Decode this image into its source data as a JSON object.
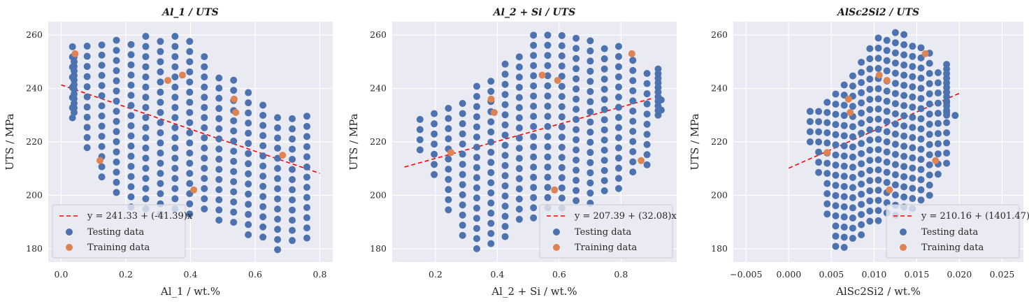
{
  "colors": {
    "background": "#eaeaf2",
    "grid": "#ffffff",
    "testing": "#4c72b0",
    "training": "#dd8452",
    "fit": "#ff0000"
  },
  "chart_data": [
    {
      "type": "scatter",
      "title": "Al_1 / UTS",
      "xlabel": "Al_1 / wt.%",
      "ylabel": "UTS / MPa",
      "xlim": [
        -0.04,
        0.84
      ],
      "ylim": [
        175,
        265
      ],
      "xticks": [
        0.0,
        0.2,
        0.4,
        0.6,
        0.8
      ],
      "xtick_labels": [
        "0.0",
        "0.2",
        "0.4",
        "0.6",
        "0.8"
      ],
      "yticks": [
        180,
        200,
        220,
        240,
        260
      ],
      "legend_position": "lower-left",
      "fit": {
        "label": "y = 241.33 + (-41.39)x",
        "intercept": 241.33,
        "slope": -41.39,
        "x_range": [
          0.0,
          0.8
        ]
      },
      "series": [
        {
          "name": "Testing data",
          "role": "testing",
          "cloud": {
            "kind": "band",
            "x0": 0.035,
            "x1": 0.76,
            "cols": 17,
            "top": [
              [
                0.035,
                256
              ],
              [
                0.2,
                260
              ],
              [
                0.38,
                261
              ],
              [
                0.47,
                249
              ],
              [
                0.6,
                238
              ],
              [
                0.68,
                229
              ],
              [
                0.76,
                232
              ]
            ],
            "bot": [
              [
                0.035,
                229
              ],
              [
                0.08,
                216
              ],
              [
                0.16,
                200
              ],
              [
                0.25,
                193
              ],
              [
                0.35,
                193
              ],
              [
                0.45,
                193
              ],
              [
                0.55,
                187
              ],
              [
                0.68,
                179
              ],
              [
                0.76,
                184
              ]
            ],
            "step": 3.8,
            "edge_x": 0.04,
            "edge_y": [
              231,
              253
            ]
          }
        },
        {
          "name": "Training data",
          "role": "training",
          "points": [
            [
              0.043,
              253
            ],
            [
              0.12,
              213
            ],
            [
              0.33,
              243
            ],
            [
              0.375,
              245
            ],
            [
              0.41,
              202
            ],
            [
              0.535,
              236
            ],
            [
              0.54,
              231
            ],
            [
              0.685,
              215
            ]
          ]
        }
      ]
    },
    {
      "type": "scatter",
      "title": "Al_2 + Si / UTS",
      "xlabel": "Al_2 + Si / wt.%",
      "ylabel": "UTS / MPa",
      "xlim": [
        0.06,
        0.98
      ],
      "ylim": [
        175,
        265
      ],
      "xticks": [
        0.2,
        0.4,
        0.6,
        0.8
      ],
      "xtick_labels": [
        "0.2",
        "0.4",
        "0.6",
        "0.8"
      ],
      "yticks": [
        180,
        200,
        220,
        240,
        260
      ],
      "legend_position": "lower-right",
      "fit": {
        "label": "y = 207.39 + (32.08)x",
        "intercept": 207.39,
        "slope": 32.08,
        "x_range": [
          0.1,
          0.9
        ]
      },
      "series": [
        {
          "name": "Testing data",
          "role": "testing",
          "cloud": {
            "kind": "band",
            "x0": 0.15,
            "x1": 0.93,
            "cols": 18,
            "top": [
              [
                0.15,
                232
              ],
              [
                0.25,
                235
              ],
              [
                0.35,
                243
              ],
              [
                0.45,
                252
              ],
              [
                0.52,
                261
              ],
              [
                0.65,
                261
              ],
              [
                0.8,
                257
              ],
              [
                0.9,
                246
              ],
              [
                0.93,
                236
              ]
            ],
            "bot": [
              [
                0.15,
                217
              ],
              [
                0.22,
                200
              ],
              [
                0.3,
                180
              ],
              [
                0.38,
                180
              ],
              [
                0.48,
                190
              ],
              [
                0.6,
                195
              ],
              [
                0.7,
                197
              ],
              [
                0.8,
                203
              ],
              [
                0.9,
                213
              ],
              [
                0.93,
                230
              ]
            ],
            "step": 3.8,
            "edge_x": 0.92,
            "edge_y": [
              230,
              248
            ]
          }
        },
        {
          "name": "Training data",
          "role": "training",
          "points": [
            [
              0.25,
              216
            ],
            [
              0.38,
              236
            ],
            [
              0.39,
              231
            ],
            [
              0.545,
              245
            ],
            [
              0.585,
              202
            ],
            [
              0.595,
              243
            ],
            [
              0.835,
              253
            ],
            [
              0.865,
              213
            ]
          ]
        }
      ]
    },
    {
      "type": "scatter",
      "title": "AlSc2Si2 / UTS",
      "xlabel": "AlSc2Si2 / wt.%",
      "ylabel": "UTS / MPa",
      "xlim": [
        -0.0065,
        0.0275
      ],
      "ylim": [
        175,
        265
      ],
      "xticks": [
        -0.005,
        0.0,
        0.005,
        0.01,
        0.015,
        0.02,
        0.025
      ],
      "xtick_labels": [
        "−0.005",
        "0.000",
        "0.005",
        "0.010",
        "0.015",
        "0.020",
        "0.025"
      ],
      "yticks": [
        180,
        200,
        220,
        240,
        260
      ],
      "legend_position": "lower-right",
      "fit": {
        "label": "y = 210.16 + (1401.47)x",
        "intercept": 210.16,
        "slope": 1401.47,
        "x_range": [
          0.0,
          0.02
        ]
      },
      "series": [
        {
          "name": "Testing data",
          "role": "testing",
          "cloud": {
            "kind": "band",
            "x0": 0.0025,
            "x1": 0.0195,
            "cols": 18,
            "top": [
              [
                0.0025,
                232
              ],
              [
                0.005,
                238
              ],
              [
                0.0075,
                248
              ],
              [
                0.01,
                261
              ],
              [
                0.013,
                261
              ],
              [
                0.016,
                256
              ],
              [
                0.018,
                246
              ],
              [
                0.0195,
                231
              ]
            ],
            "bot": [
              [
                0.0025,
                220
              ],
              [
                0.004,
                200
              ],
              [
                0.0055,
                179
              ],
              [
                0.0075,
                182
              ],
              [
                0.01,
                190
              ],
              [
                0.013,
                193
              ],
              [
                0.016,
                197
              ],
              [
                0.0185,
                212
              ],
              [
                0.0195,
                228
              ]
            ],
            "step": 3.8,
            "edge_x": 0.0185,
            "edge_y": [
              230,
              250
            ]
          }
        },
        {
          "name": "Training data",
          "role": "training",
          "points": [
            [
              0.0045,
              216
            ],
            [
              0.007,
              236
            ],
            [
              0.0072,
              231
            ],
            [
              0.0106,
              245
            ],
            [
              0.0115,
              243
            ],
            [
              0.0118,
              202
            ],
            [
              0.016,
              253
            ],
            [
              0.0172,
              213
            ]
          ]
        }
      ]
    }
  ]
}
